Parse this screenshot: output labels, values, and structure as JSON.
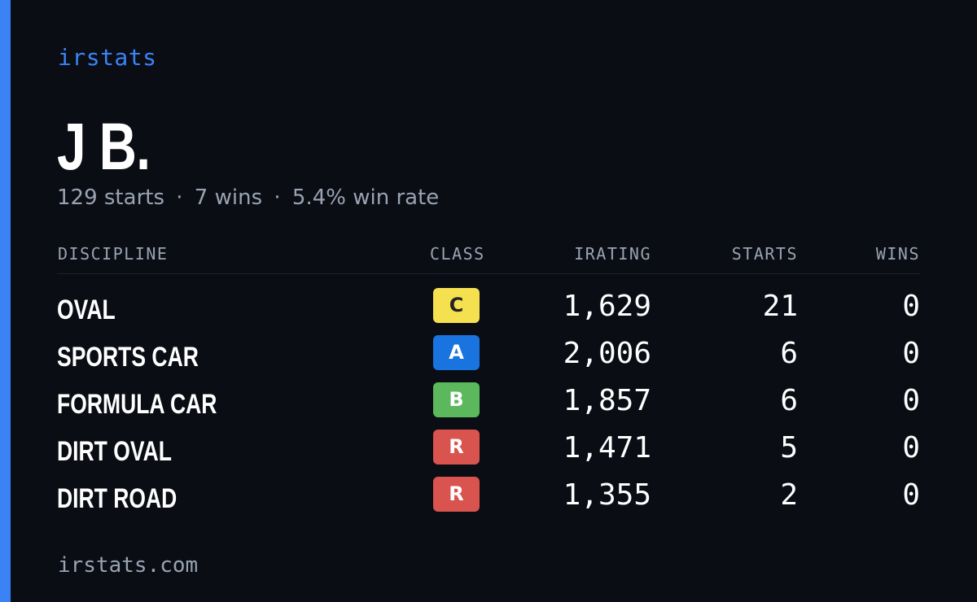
{
  "brand": "irstats",
  "profile": {
    "name": "J B.",
    "starts_text": "129 starts",
    "wins_text": "7 wins",
    "winrate_text": "5.4% win rate",
    "separator": "·"
  },
  "table": {
    "headers": {
      "discipline": "DISCIPLINE",
      "class": "CLASS",
      "irating": "IRATING",
      "starts": "STARTS",
      "wins": "WINS"
    },
    "rows": [
      {
        "discipline": "OVAL",
        "class": "C",
        "class_color": "#f5e050",
        "class_text_color": "#222222",
        "irating": "1,629",
        "starts": "21",
        "wins": "0"
      },
      {
        "discipline": "SPORTS CAR",
        "class": "A",
        "class_color": "#1a74e0",
        "class_text_color": "#ffffff",
        "irating": "2,006",
        "starts": "6",
        "wins": "0"
      },
      {
        "discipline": "FORMULA CAR",
        "class": "B",
        "class_color": "#5cb85c",
        "class_text_color": "#ffffff",
        "irating": "1,857",
        "starts": "6",
        "wins": "0"
      },
      {
        "discipline": "DIRT OVAL",
        "class": "R",
        "class_color": "#d9534f",
        "class_text_color": "#ffffff",
        "irating": "1,471",
        "starts": "5",
        "wins": "0"
      },
      {
        "discipline": "DIRT ROAD",
        "class": "R",
        "class_color": "#d9534f",
        "class_text_color": "#ffffff",
        "irating": "1,355",
        "starts": "2",
        "wins": "0"
      }
    ]
  },
  "footer": "irstats.com",
  "colors": {
    "accent": "#3b82f6",
    "background": "#0a0d14",
    "muted_text": "#9aa3b2"
  }
}
